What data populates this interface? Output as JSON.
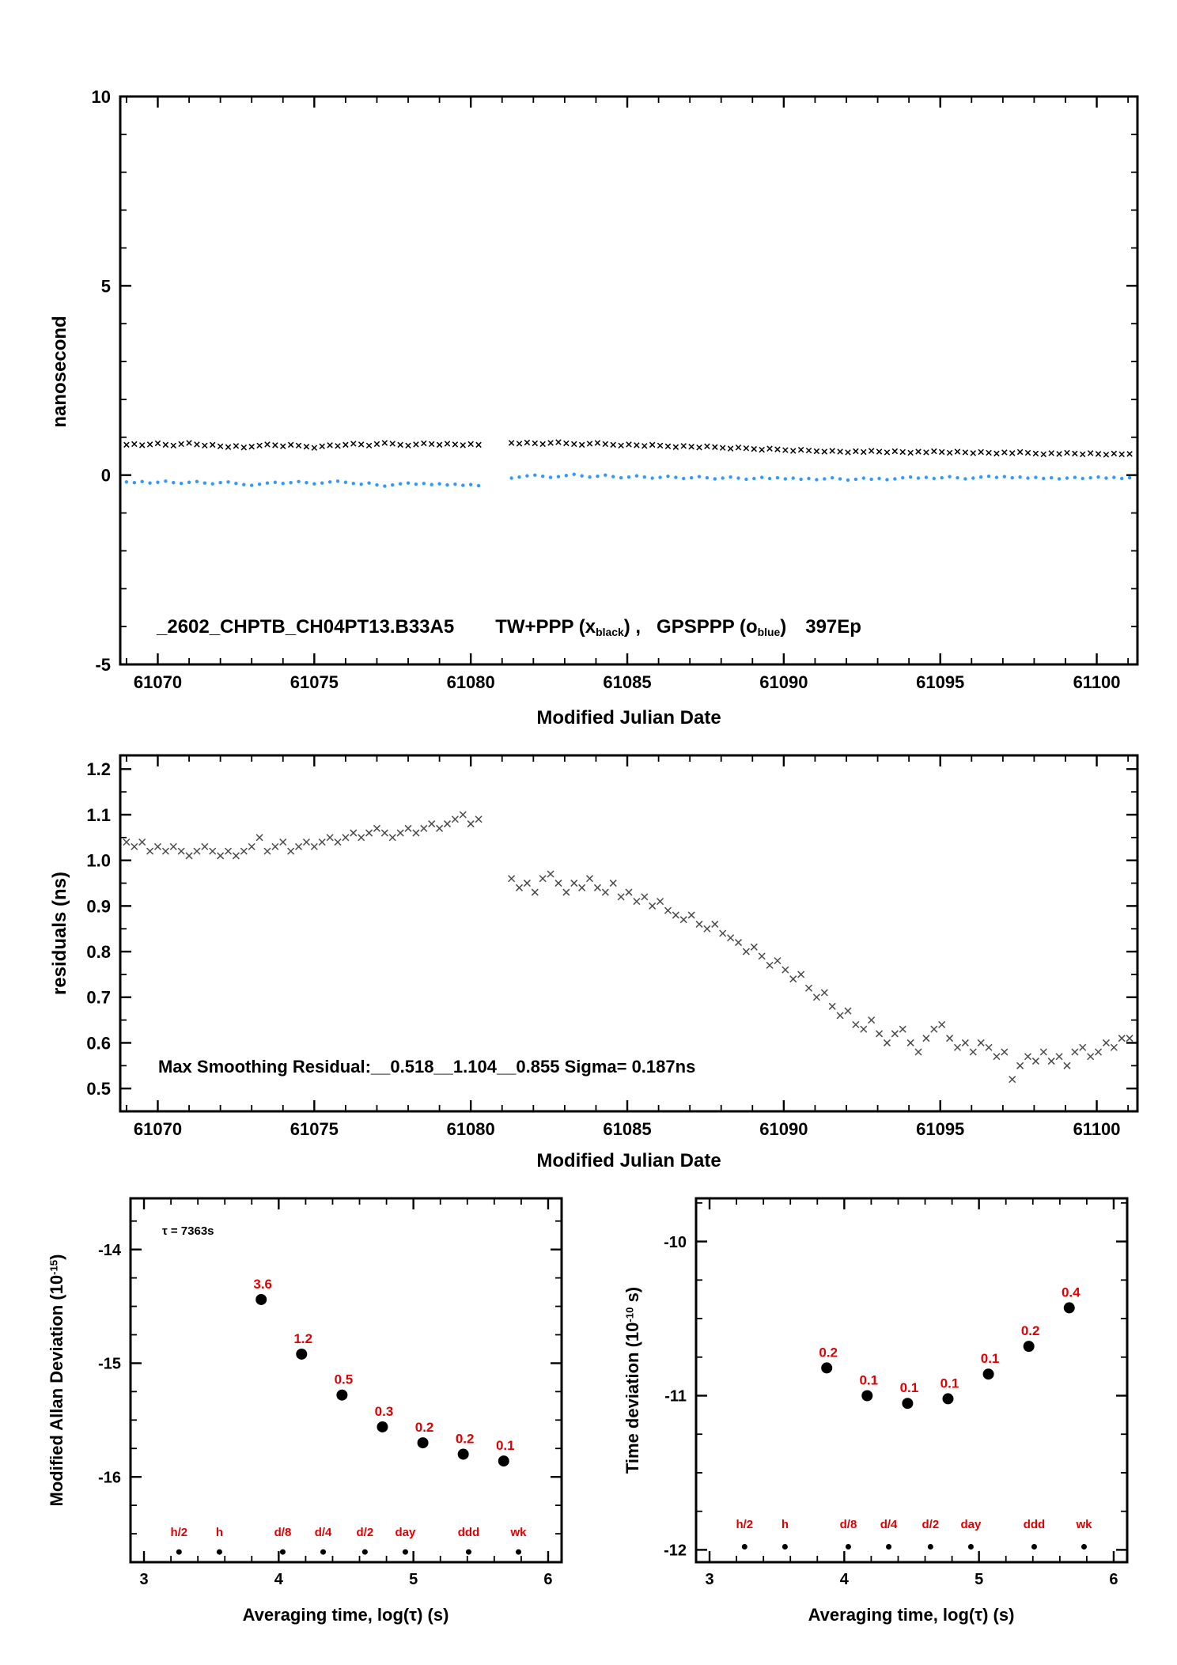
{
  "colors": {
    "black": "#000000",
    "blue": "#3399ff",
    "gray_marker": "#4a4a4a",
    "red": "#e10000"
  },
  "labels": {
    "top": {
      "ylabel": "nanosecond",
      "xlabel": "Modified Julian Date",
      "run": "_2602_CHPTB_CH04PT13.B33A5",
      "tw": "TW+PPP (x",
      "tw_sub": "black",
      "tw_close": ") ,",
      "gps": "GPSPPP (o",
      "gps_sub": "blue",
      "gps_close": ")",
      "count": "397Ep"
    },
    "mid": {
      "ylabel": "residuals (ns)",
      "xlabel": "Modified Julian Date",
      "annotation": "Max Smoothing Residual:__0.518__1.104__0.855  Sigma= 0.187ns"
    },
    "madev": {
      "ylabel_main": "Modified Allan Deviation (10",
      "ylabel_sup": "-15",
      "ylabel_close": ")",
      "xlabel": "Averaging time, log(τ) (s)",
      "tau": "τ = 7363s"
    },
    "tdev": {
      "ylabel_main": "Time deviation (10",
      "ylabel_sup": "-10",
      "ylabel_close": " s)",
      "xlabel": "Averaging time, log(τ) (s)"
    }
  },
  "chart_data": [
    {
      "id": "top",
      "type": "scatter",
      "title": "",
      "xlabel": "Modified Julian Date",
      "ylabel": "nanosecond",
      "xlim": [
        61068.8,
        61101.3
      ],
      "ylim": [
        -5,
        10
      ],
      "xticks": [
        61070,
        61075,
        61080,
        61085,
        61090,
        61095,
        61100
      ],
      "yticks": [
        10,
        5,
        0,
        -5
      ],
      "x_minor_step": 1,
      "y_minor_step": 1,
      "series": [
        {
          "name": "TW+PPP",
          "marker": "x",
          "color": "#000000",
          "size": 3.2,
          "segments": [
            {
              "x_start": 61069.0,
              "x_step": 0.25,
              "values": [
                0.8,
                0.82,
                0.79,
                0.81,
                0.84,
                0.8,
                0.78,
                0.82,
                0.85,
                0.81,
                0.78,
                0.8,
                0.76,
                0.74,
                0.77,
                0.73,
                0.75,
                0.78,
                0.81,
                0.79,
                0.76,
                0.8,
                0.78,
                0.75,
                0.72,
                0.76,
                0.79,
                0.77,
                0.8,
                0.83,
                0.81,
                0.78,
                0.82,
                0.85,
                0.83,
                0.8,
                0.78,
                0.81,
                0.84,
                0.82,
                0.8,
                0.83,
                0.81,
                0.79,
                0.82,
                0.8
              ]
            },
            {
              "x_start": 61081.3,
              "x_step": 0.25,
              "values": [
                0.85,
                0.83,
                0.86,
                0.84,
                0.82,
                0.85,
                0.87,
                0.84,
                0.82,
                0.8,
                0.83,
                0.85,
                0.82,
                0.8,
                0.78,
                0.81,
                0.79,
                0.77,
                0.8,
                0.78,
                0.76,
                0.74,
                0.77,
                0.75,
                0.73,
                0.76,
                0.74,
                0.72,
                0.7,
                0.73,
                0.71,
                0.69,
                0.67,
                0.7,
                0.68,
                0.66,
                0.64,
                0.67,
                0.65,
                0.63,
                0.62,
                0.64,
                0.62,
                0.6,
                0.63,
                0.61,
                0.64,
                0.62,
                0.6,
                0.63,
                0.61,
                0.59,
                0.62,
                0.6,
                0.63,
                0.61,
                0.59,
                0.62,
                0.6,
                0.58,
                0.61,
                0.59,
                0.57,
                0.6,
                0.58,
                0.61,
                0.59,
                0.57,
                0.55,
                0.58,
                0.56,
                0.59,
                0.57,
                0.55,
                0.58,
                0.56,
                0.54,
                0.57,
                0.55,
                0.56
              ]
            }
          ]
        },
        {
          "name": "GPSPPP",
          "marker": "o",
          "color": "#3399ff",
          "size": 2.2,
          "segments": [
            {
              "x_start": 61069.0,
              "x_step": 0.25,
              "values": [
                -0.18,
                -0.2,
                -0.17,
                -0.21,
                -0.19,
                -0.16,
                -0.2,
                -0.22,
                -0.19,
                -0.17,
                -0.21,
                -0.23,
                -0.2,
                -0.18,
                -0.22,
                -0.25,
                -0.27,
                -0.24,
                -0.21,
                -0.19,
                -0.22,
                -0.2,
                -0.17,
                -0.2,
                -0.23,
                -0.21,
                -0.18,
                -0.16,
                -0.19,
                -0.22,
                -0.24,
                -0.21,
                -0.26,
                -0.29,
                -0.26,
                -0.23,
                -0.21,
                -0.24,
                -0.22,
                -0.25,
                -0.23,
                -0.26,
                -0.24,
                -0.27,
                -0.25,
                -0.28
              ]
            },
            {
              "x_start": 61081.3,
              "x_step": 0.25,
              "values": [
                -0.08,
                -0.05,
                -0.02,
                0.0,
                -0.03,
                -0.06,
                -0.04,
                -0.01,
                0.02,
                -0.02,
                -0.05,
                -0.03,
                0.0,
                -0.04,
                -0.07,
                -0.05,
                -0.02,
                -0.05,
                -0.08,
                -0.06,
                -0.03,
                -0.06,
                -0.09,
                -0.07,
                -0.04,
                -0.07,
                -0.1,
                -0.08,
                -0.05,
                -0.08,
                -0.11,
                -0.09,
                -0.06,
                -0.09,
                -0.07,
                -0.1,
                -0.08,
                -0.11,
                -0.09,
                -0.12,
                -0.1,
                -0.07,
                -0.1,
                -0.13,
                -0.11,
                -0.08,
                -0.11,
                -0.09,
                -0.12,
                -0.1,
                -0.07,
                -0.05,
                -0.08,
                -0.06,
                -0.09,
                -0.07,
                -0.04,
                -0.07,
                -0.1,
                -0.08,
                -0.05,
                -0.03,
                -0.06,
                -0.04,
                -0.07,
                -0.05,
                -0.08,
                -0.06,
                -0.09,
                -0.07,
                -0.1,
                -0.08,
                -0.06,
                -0.09,
                -0.07,
                -0.05,
                -0.08,
                -0.06,
                -0.09,
                -0.07
              ]
            }
          ]
        }
      ]
    },
    {
      "id": "mid",
      "type": "scatter",
      "title": "",
      "xlabel": "Modified Julian Date",
      "ylabel": "residuals (ns)",
      "xlim": [
        61068.8,
        61101.3
      ],
      "ylim": [
        0.45,
        1.23
      ],
      "xticks": [
        61070,
        61075,
        61080,
        61085,
        61090,
        61095,
        61100
      ],
      "yticks": [
        1.2,
        1.1,
        1.0,
        0.9,
        0.8,
        0.7,
        0.6,
        0.5
      ],
      "ytick_labels": [
        "1.2",
        "1.1",
        "1.0",
        "0.9",
        "0.8",
        "0.7",
        "0.6",
        "0.5"
      ],
      "x_minor_step": 1,
      "y_minor_step": 0.05,
      "series": [
        {
          "name": "residuals",
          "marker": "x",
          "color": "#4a4a4a",
          "size": 4,
          "segments": [
            {
              "x_start": 61069.0,
              "x_step": 0.25,
              "values": [
                1.04,
                1.03,
                1.04,
                1.02,
                1.03,
                1.02,
                1.03,
                1.02,
                1.01,
                1.02,
                1.03,
                1.02,
                1.01,
                1.02,
                1.01,
                1.02,
                1.03,
                1.05,
                1.02,
                1.03,
                1.04,
                1.02,
                1.03,
                1.04,
                1.03,
                1.04,
                1.05,
                1.04,
                1.05,
                1.06,
                1.05,
                1.06,
                1.07,
                1.06,
                1.05,
                1.06,
                1.07,
                1.06,
                1.07,
                1.08,
                1.07,
                1.08,
                1.09,
                1.1,
                1.08,
                1.09
              ]
            },
            {
              "x_start": 61081.3,
              "x_step": 0.25,
              "values": [
                0.96,
                0.94,
                0.95,
                0.93,
                0.96,
                0.97,
                0.95,
                0.93,
                0.95,
                0.94,
                0.96,
                0.94,
                0.93,
                0.95,
                0.92,
                0.93,
                0.91,
                0.92,
                0.9,
                0.91,
                0.89,
                0.88,
                0.87,
                0.88,
                0.86,
                0.85,
                0.86,
                0.84,
                0.83,
                0.82,
                0.8,
                0.81,
                0.79,
                0.77,
                0.78,
                0.76,
                0.74,
                0.75,
                0.72,
                0.7,
                0.71,
                0.68,
                0.66,
                0.67,
                0.64,
                0.63,
                0.65,
                0.62,
                0.6,
                0.62,
                0.63,
                0.6,
                0.58,
                0.61,
                0.63,
                0.64,
                0.61,
                0.59,
                0.6,
                0.58,
                0.6,
                0.59,
                0.57,
                0.58,
                0.52,
                0.55,
                0.57,
                0.56,
                0.58,
                0.56,
                0.57,
                0.55,
                0.58,
                0.59,
                0.57,
                0.58,
                0.6,
                0.59,
                0.61,
                0.61
              ]
            }
          ]
        }
      ]
    },
    {
      "id": "madev",
      "type": "scatter",
      "title": "",
      "xlabel": "Averaging time, log(τ) (s)",
      "ylabel": "Modified Allan Deviation (10^-15)",
      "xlim": [
        2.9,
        6.1
      ],
      "ylim": [
        -16.75,
        -13.55
      ],
      "xticks": [
        3,
        4,
        5,
        6
      ],
      "yticks": [
        -14,
        -15,
        -16
      ],
      "x_minor_step": 0.2,
      "y_minor_step": 0.25,
      "label_color": "#e10000",
      "points": {
        "x": [
          3.87,
          4.17,
          4.47,
          4.77,
          5.07,
          5.37,
          5.67
        ],
        "y": [
          -14.44,
          -14.92,
          -15.28,
          -15.56,
          -15.7,
          -15.8,
          -15.86
        ],
        "labels": [
          "3.6",
          "1.2",
          "0.5",
          "0.3",
          "0.2",
          "0.2",
          "0.1"
        ]
      },
      "tau_marks": {
        "labels": [
          "h/2",
          "h",
          "d/8",
          "d/4",
          "d/2",
          "day",
          "ddd",
          "wk"
        ],
        "x": [
          3.26,
          3.56,
          4.03,
          4.33,
          4.64,
          4.94,
          5.41,
          5.78
        ],
        "label_y": -16.52,
        "dot_y": -16.66
      },
      "annotation": "τ = 7363s"
    },
    {
      "id": "tdev",
      "type": "scatter",
      "title": "",
      "xlabel": "Averaging time, log(τ) (s)",
      "ylabel": "Time deviation (10^-10 s)",
      "xlim": [
        2.9,
        6.1
      ],
      "ylim": [
        -12.08,
        -9.72
      ],
      "xticks": [
        3,
        4,
        5,
        6
      ],
      "yticks": [
        -10,
        -11,
        -12
      ],
      "x_minor_step": 0.2,
      "y_minor_step": 0.25,
      "label_color": "#e10000",
      "points": {
        "x": [
          3.87,
          4.17,
          4.47,
          4.77,
          5.07,
          5.37,
          5.67
        ],
        "y": [
          -10.82,
          -11.0,
          -11.05,
          -11.02,
          -10.86,
          -10.68,
          -10.43
        ],
        "labels": [
          "0.2",
          "0.1",
          "0.1",
          "0.1",
          "0.1",
          "0.2",
          "0.4"
        ]
      },
      "tau_marks": {
        "labels": [
          "h/2",
          "h",
          "d/8",
          "d/4",
          "d/2",
          "day",
          "ddd",
          "wk"
        ],
        "x": [
          3.26,
          3.56,
          4.03,
          4.33,
          4.64,
          4.94,
          5.41,
          5.78
        ],
        "label_y": -11.86,
        "dot_y": -11.98
      }
    }
  ]
}
